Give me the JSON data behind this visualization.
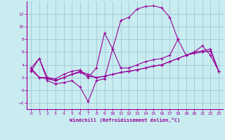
{
  "xlabel": "Windchill (Refroidissement éolien,°C)",
  "bg_color": "#c8ecf0",
  "line_color": "#990099",
  "grid_color": "#a0c8d8",
  "xlim": [
    -0.5,
    23.5
  ],
  "ylim": [
    -3.0,
    14.0
  ],
  "yticks": [
    -2,
    0,
    2,
    4,
    6,
    8,
    10,
    12
  ],
  "xticks": [
    0,
    1,
    2,
    3,
    4,
    5,
    6,
    7,
    8,
    9,
    10,
    11,
    12,
    13,
    14,
    15,
    16,
    17,
    18,
    19,
    20,
    21,
    22,
    23
  ],
  "series": [
    {
      "x": [
        0,
        1,
        2,
        3,
        4,
        5,
        6,
        7,
        8,
        9,
        10,
        11,
        12,
        13,
        14,
        15,
        16,
        17,
        18,
        19,
        20,
        21,
        22,
        23
      ],
      "y": [
        3.0,
        5.0,
        1.5,
        1.0,
        1.2,
        1.5,
        0.5,
        -1.8,
        1.5,
        1.8,
        6.5,
        3.5,
        3.5,
        4.0,
        4.5,
        4.8,
        5.0,
        5.5,
        8.0,
        5.5,
        6.0,
        7.0,
        5.5,
        3.0
      ]
    },
    {
      "x": [
        0,
        1,
        2,
        3,
        4,
        5,
        6,
        7,
        8,
        9,
        10,
        11,
        12,
        13,
        14,
        15,
        16,
        17,
        18
      ],
      "y": [
        3.5,
        5.0,
        2.0,
        1.8,
        2.5,
        3.0,
        3.2,
        2.0,
        3.5,
        9.0,
        6.5,
        11.0,
        11.5,
        12.8,
        13.2,
        13.3,
        13.0,
        11.5,
        8.0
      ]
    },
    {
      "x": [
        0,
        1,
        2,
        3,
        4,
        5,
        6,
        7,
        8,
        9,
        10,
        11,
        12,
        13,
        14,
        15,
        16,
        17,
        18,
        19,
        20,
        21,
        22,
        23
      ],
      "y": [
        3.2,
        2.0,
        1.8,
        1.5,
        2.0,
        2.5,
        2.8,
        2.2,
        2.0,
        2.2,
        2.5,
        2.8,
        3.0,
        3.2,
        3.5,
        3.8,
        4.0,
        4.5,
        5.0,
        5.5,
        6.0,
        6.2,
        6.5,
        3.0
      ]
    },
    {
      "x": [
        0,
        1,
        2,
        3,
        4,
        5,
        6,
        7,
        8,
        9,
        10,
        11,
        12,
        13,
        14,
        15,
        16,
        17,
        18,
        19,
        20,
        21,
        22,
        23
      ],
      "y": [
        3.5,
        2.0,
        2.0,
        1.5,
        2.0,
        2.5,
        3.0,
        2.5,
        2.0,
        2.2,
        2.5,
        2.8,
        3.0,
        3.2,
        3.5,
        3.8,
        4.0,
        4.5,
        5.0,
        5.5,
        5.8,
        6.0,
        6.2,
        3.0
      ]
    }
  ]
}
